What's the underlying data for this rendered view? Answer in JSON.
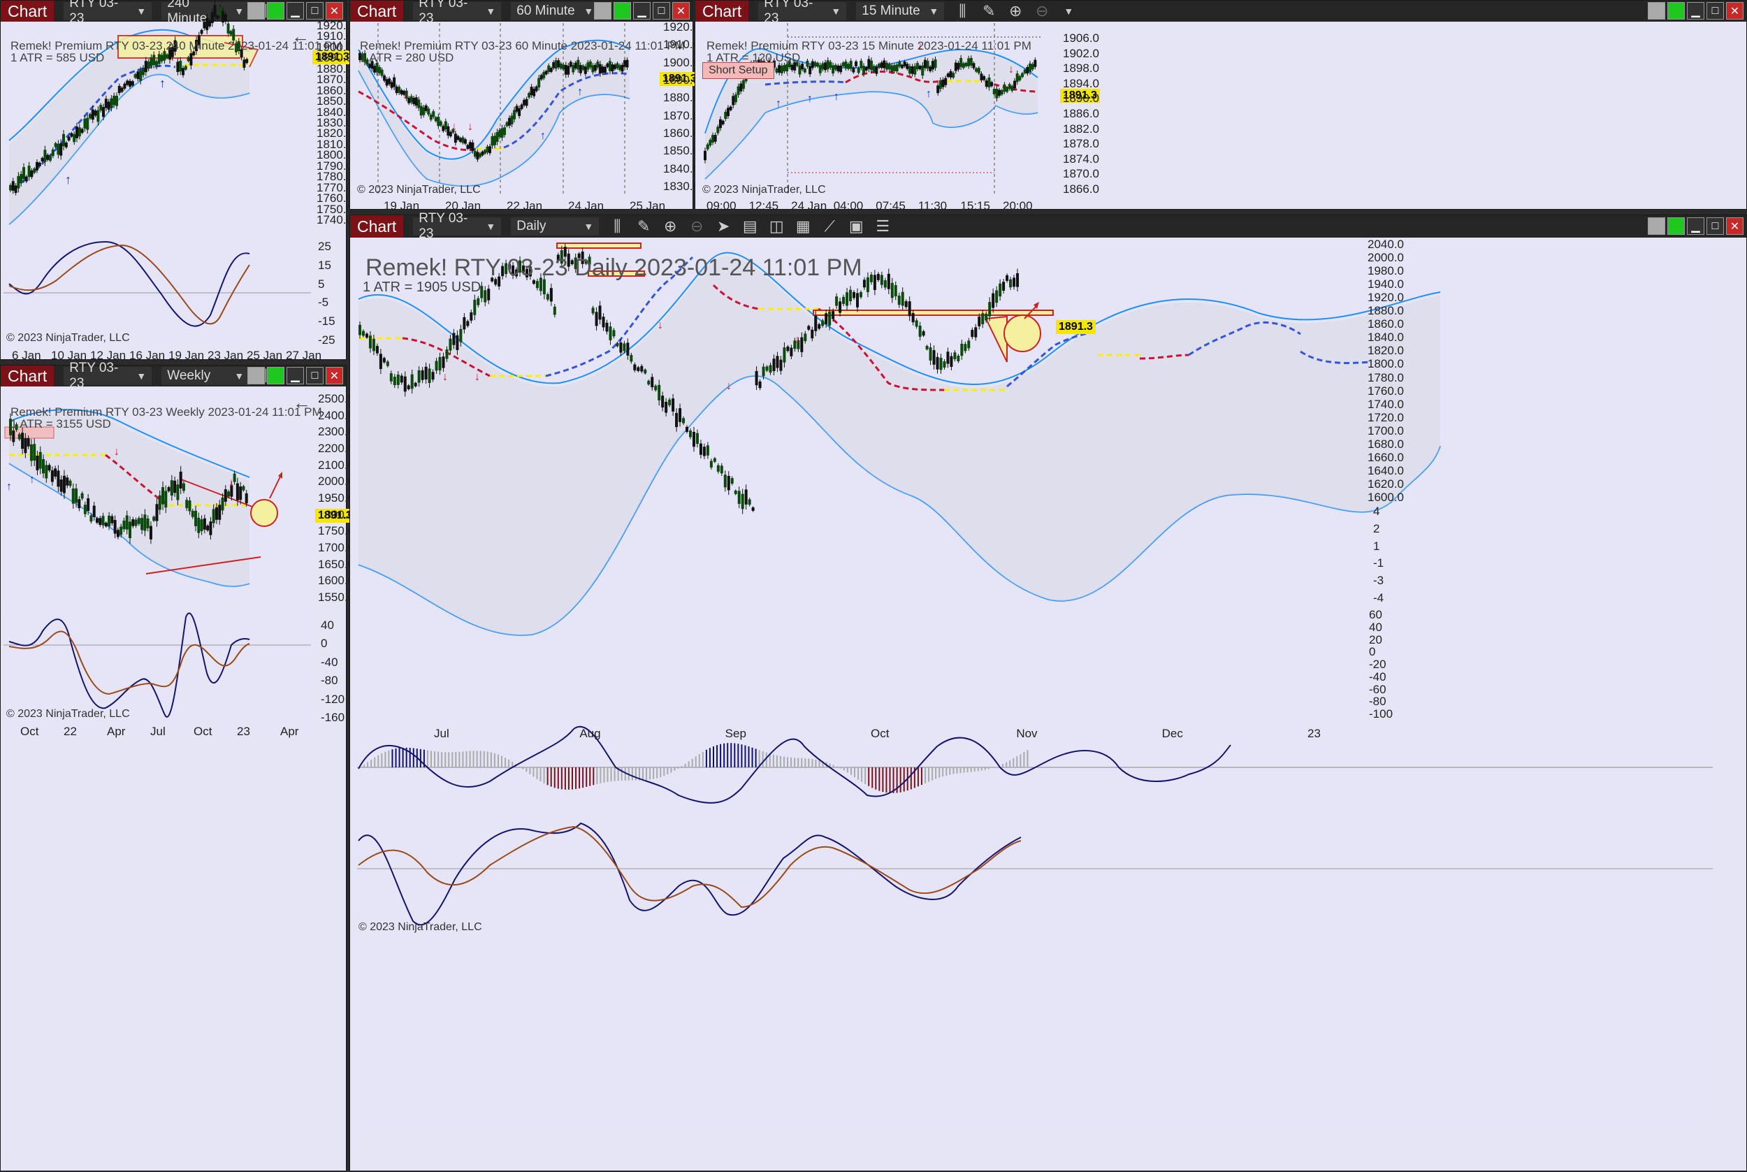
{
  "colors": {
    "chart_bg": "#e5e5f7",
    "titlebar": "#262626",
    "chart_tab": "#7a1218",
    "price_tag": "#f5e600",
    "band": "#1e90ff",
    "ma_up": "#2244cc",
    "ma_down": "#cc1133",
    "ma_flat": "#ffee00"
  },
  "tab_label": "Chart",
  "win240": {
    "instrument": "RTY 03-23",
    "interval": "240 Minute",
    "header": "Remek!  Premium  RTY 03-23  240 Minute  2023-01-24 11:01 PM",
    "atr": "1 ATR = 585 USD",
    "price": "1891.3",
    "copyright": "© 2023 NinjaTrader, LLC",
    "yaxis": [
      "1920.0",
      "1910.0",
      "1900.0",
      "1890.0",
      "1880.0",
      "1870.0",
      "1860.0",
      "1850.0",
      "1840.0",
      "1830.0",
      "1820.0",
      "1810.0",
      "1800.0",
      "1790.0",
      "1780.0",
      "1770.0",
      "1760.0",
      "1750.0",
      "1740.0"
    ],
    "osc_axis": [
      "25",
      "15",
      "5",
      "-5",
      "-15",
      "-25"
    ],
    "xaxis": [
      "6 Jan",
      "10 Jan",
      "12 Jan",
      "16 Jan",
      "19 Jan",
      "23 Jan",
      "25 Jan",
      "27 Jan"
    ]
  },
  "win60": {
    "instrument": "RTY 03-23",
    "interval": "60 Minute",
    "header": "Remek!  Premium  RTY 03-23  60 Minute  2023-01-24 11:01 PM",
    "atr": "1 ATR = 280 USD",
    "price": "1891.3",
    "copyright": "© 2023 NinjaTrader, LLC",
    "yaxis": [
      "1920.0",
      "1910.0",
      "1900.0",
      "1890.0",
      "1880.0",
      "1870.0",
      "1860.0",
      "1850.0",
      "1840.0",
      "1830.0"
    ],
    "xaxis": [
      "19 Jan",
      "20 Jan",
      "22 Jan",
      "24 Jan",
      "25 Jan"
    ]
  },
  "win15": {
    "instrument": "RTY 03-23",
    "interval": "15 Minute",
    "header": "Remek!  Premium  RTY 03-23  15 Minute  2023-01-24 11:01 PM",
    "atr": "1 ATR = 120 USD",
    "price": "1891.3",
    "setup": "Short Setup",
    "copyright": "© 2023 NinjaTrader, LLC",
    "yaxis": [
      "1906.0",
      "1902.0",
      "1898.0",
      "1894.0",
      "1890.0",
      "1886.0",
      "1882.0",
      "1878.0",
      "1874.0",
      "1870.0",
      "1866.0"
    ],
    "xaxis": [
      "09:00",
      "12:45",
      "24 Jan",
      "04:00",
      "07:45",
      "11:30",
      "15:15",
      "20:00"
    ]
  },
  "winW": {
    "instrument": "RTY 03-23",
    "interval": "Weekly",
    "header": "Remek!  Premium  RTY 03-23  Weekly  2023-01-24 11:01 PM",
    "atr": "1 ATR = 3155 USD",
    "price": "1891.3",
    "copyright": "© 2023 NinjaTrader, LLC",
    "yaxis": [
      "2500.0",
      "2400.0",
      "2300.0",
      "2200.0",
      "2100.0",
      "2000.0",
      "1950.0",
      "1800.0",
      "1750.0",
      "1700.0",
      "1650.0",
      "1600.0",
      "1550.0"
    ],
    "osc_axis": [
      "40",
      "0",
      "-40",
      "-80",
      "-120",
      "-160"
    ],
    "xaxis": [
      "Oct",
      "22",
      "Apr",
      "Jul",
      "Oct",
      "23",
      "Apr"
    ]
  },
  "winD": {
    "instrument": "RTY 03-23",
    "interval": "Daily",
    "header": "Remek!  RTY 03-23  Daily  2023-01-24 11:01 PM",
    "atr": "1 ATR = 1905 USD",
    "price": "1891.3",
    "copyright": "© 2023 NinjaTrader, LLC",
    "yaxis": [
      "2040.0",
      "2000.0",
      "1980.0",
      "1940.0",
      "1920.0",
      "1880.0",
      "1860.0",
      "1840.0",
      "1820.0",
      "1800.0",
      "1780.0",
      "1760.0",
      "1740.0",
      "1720.0",
      "1700.0",
      "1680.0",
      "1660.0",
      "1640.0",
      "1620.0",
      "1600.0"
    ],
    "hist_axis": [
      "4",
      "2",
      "1",
      "-1",
      "-3",
      "-4"
    ],
    "osc_axis": [
      "60",
      "40",
      "20",
      "0",
      "-20",
      "-40",
      "-60",
      "-80",
      "-100"
    ],
    "xaxis": [
      "Jul",
      "Aug",
      "Sep",
      "Oct",
      "Nov",
      "Dec",
      "23"
    ]
  }
}
